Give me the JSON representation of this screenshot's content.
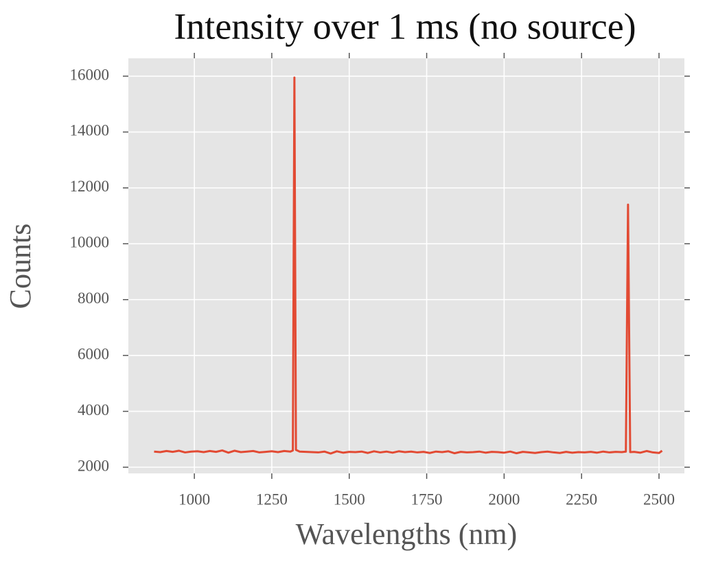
{
  "chart_data": {
    "type": "line",
    "title": "Intensity over 1 ms (no source)",
    "x_label": "Wavelengths (nm)",
    "y_label": "Counts",
    "x": [
      870,
      890,
      910,
      930,
      950,
      970,
      990,
      1010,
      1030,
      1050,
      1070,
      1090,
      1110,
      1130,
      1150,
      1170,
      1190,
      1210,
      1230,
      1250,
      1270,
      1290,
      1310,
      1318,
      1323,
      1328,
      1340,
      1360,
      1380,
      1400,
      1420,
      1440,
      1460,
      1480,
      1500,
      1520,
      1540,
      1560,
      1580,
      1600,
      1620,
      1640,
      1660,
      1680,
      1700,
      1720,
      1740,
      1760,
      1780,
      1800,
      1820,
      1840,
      1860,
      1880,
      1900,
      1920,
      1940,
      1960,
      1980,
      2000,
      2020,
      2040,
      2060,
      2080,
      2100,
      2120,
      2140,
      2160,
      2180,
      2200,
      2220,
      2240,
      2260,
      2280,
      2300,
      2320,
      2340,
      2360,
      2380,
      2393,
      2400,
      2407,
      2420,
      2440,
      2460,
      2480,
      2500,
      2510
    ],
    "series": [
      {
        "color": "#E24A33",
        "values": [
          2560,
          2540,
          2580,
          2550,
          2590,
          2530,
          2560,
          2570,
          2540,
          2580,
          2550,
          2600,
          2520,
          2590,
          2540,
          2560,
          2580,
          2530,
          2550,
          2570,
          2540,
          2580,
          2560,
          2600,
          15950,
          2620,
          2560,
          2550,
          2540,
          2530,
          2560,
          2490,
          2570,
          2520,
          2550,
          2540,
          2560,
          2510,
          2570,
          2530,
          2560,
          2520,
          2570,
          2540,
          2560,
          2530,
          2550,
          2510,
          2560,
          2540,
          2570,
          2500,
          2550,
          2530,
          2540,
          2560,
          2520,
          2550,
          2540,
          2520,
          2560,
          2500,
          2550,
          2530,
          2510,
          2540,
          2560,
          2530,
          2510,
          2550,
          2520,
          2540,
          2530,
          2550,
          2520,
          2560,
          2530,
          2550,
          2540,
          2560,
          11400,
          2540,
          2550,
          2520,
          2580,
          2530,
          2510,
          2590
        ]
      }
    ],
    "xlim": [
      787,
      2582
    ],
    "ylim": [
      1779,
      16639
    ],
    "xticks": [
      1000,
      1250,
      1500,
      1750,
      2000,
      2250,
      2500
    ],
    "yticks": [
      2000,
      4000,
      6000,
      8000,
      10000,
      12000,
      14000,
      16000
    ],
    "grid": true
  }
}
